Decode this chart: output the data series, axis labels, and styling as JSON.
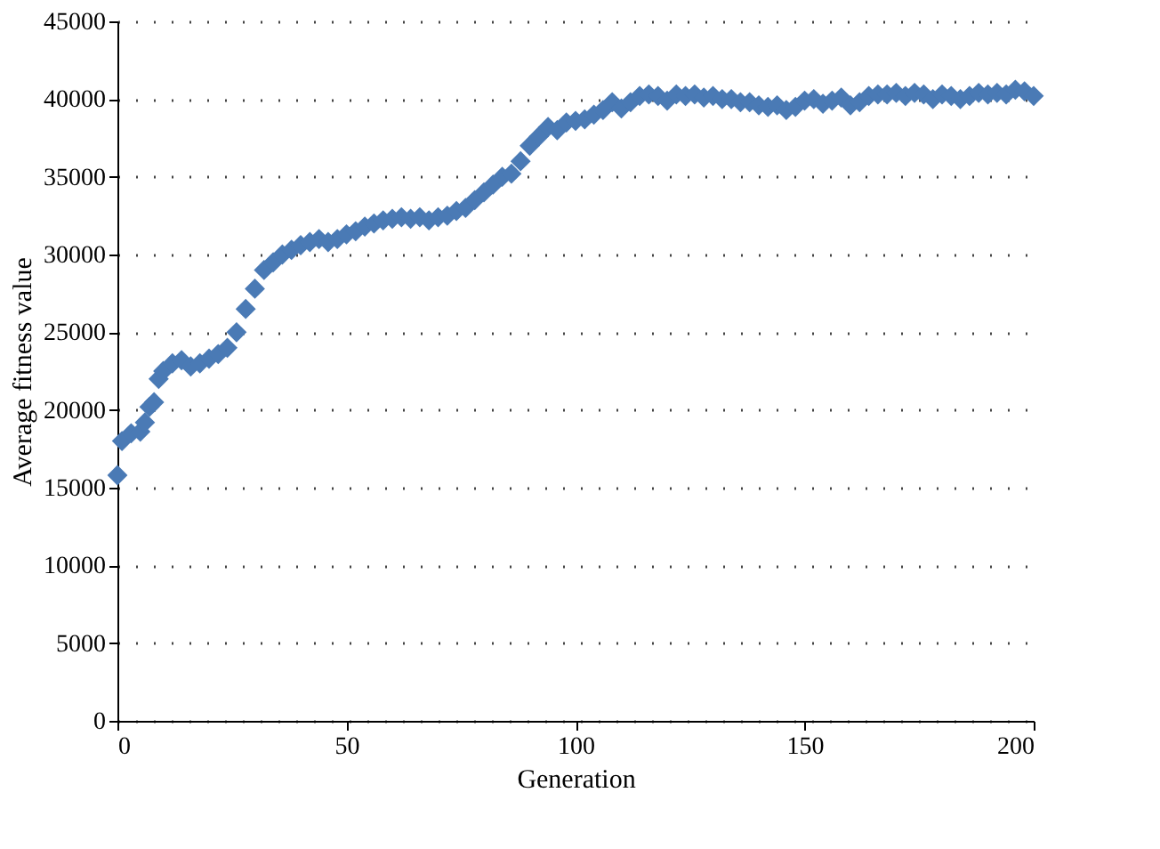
{
  "chart_data": {
    "type": "scatter",
    "xlabel": "Generation",
    "ylabel": "Average fitness value",
    "x": [
      0,
      1,
      3,
      5,
      6,
      7,
      8,
      9,
      10,
      12,
      14,
      16,
      18,
      20,
      22,
      24,
      26,
      28,
      30,
      32,
      34,
      36,
      38,
      40,
      42,
      44,
      46,
      48,
      50,
      52,
      54,
      56,
      58,
      60,
      62,
      64,
      66,
      68,
      70,
      72,
      74,
      76,
      78,
      80,
      82,
      84,
      86,
      88,
      90,
      92,
      94,
      96,
      98,
      100,
      102,
      104,
      106,
      108,
      110,
      112,
      114,
      116,
      118,
      120,
      122,
      124,
      126,
      128,
      130,
      132,
      134,
      136,
      138,
      140,
      142,
      144,
      146,
      148,
      150,
      152,
      154,
      156,
      158,
      160,
      162,
      164,
      166,
      168,
      170,
      172,
      174,
      176,
      178,
      180,
      182,
      184,
      186,
      188,
      190,
      192,
      194,
      196,
      198,
      200
    ],
    "series": [
      {
        "color": "#4a7ab5",
        "values": [
          15800,
          18000,
          18500,
          18600,
          19200,
          20200,
          20500,
          22000,
          22500,
          23000,
          23200,
          22800,
          23000,
          23300,
          23600,
          24000,
          25000,
          26500,
          27800,
          29000,
          29500,
          30000,
          30300,
          30600,
          30800,
          31000,
          30800,
          31000,
          31300,
          31500,
          31800,
          32000,
          32200,
          32300,
          32400,
          32300,
          32400,
          32200,
          32400,
          32500,
          32800,
          33000,
          33500,
          34000,
          34500,
          35000,
          35200,
          36000,
          37000,
          37600,
          38200,
          38000,
          38500,
          38600,
          38700,
          39000,
          39300,
          39800,
          39400,
          39800,
          40200,
          40300,
          40200,
          39900,
          40300,
          40200,
          40300,
          40100,
          40200,
          40000,
          40000,
          39800,
          39800,
          39600,
          39500,
          39600,
          39300,
          39500,
          39900,
          40000,
          39700,
          39900,
          40100,
          39600,
          39800,
          40200,
          40300,
          40300,
          40400,
          40200,
          40400,
          40300,
          40000,
          40300,
          40200,
          40000,
          40200,
          40400,
          40300,
          40400,
          40300,
          40600,
          40500,
          40200
        ]
      }
    ],
    "xlim": [
      0,
      200
    ],
    "xticks": [
      0,
      50,
      100,
      150,
      200
    ],
    "ylim": [
      0,
      45000
    ],
    "yticks": [
      0,
      5000,
      10000,
      15000,
      20000,
      25000,
      30000,
      35000,
      40000,
      45000
    ],
    "grid": "y",
    "marker": "diamond"
  }
}
